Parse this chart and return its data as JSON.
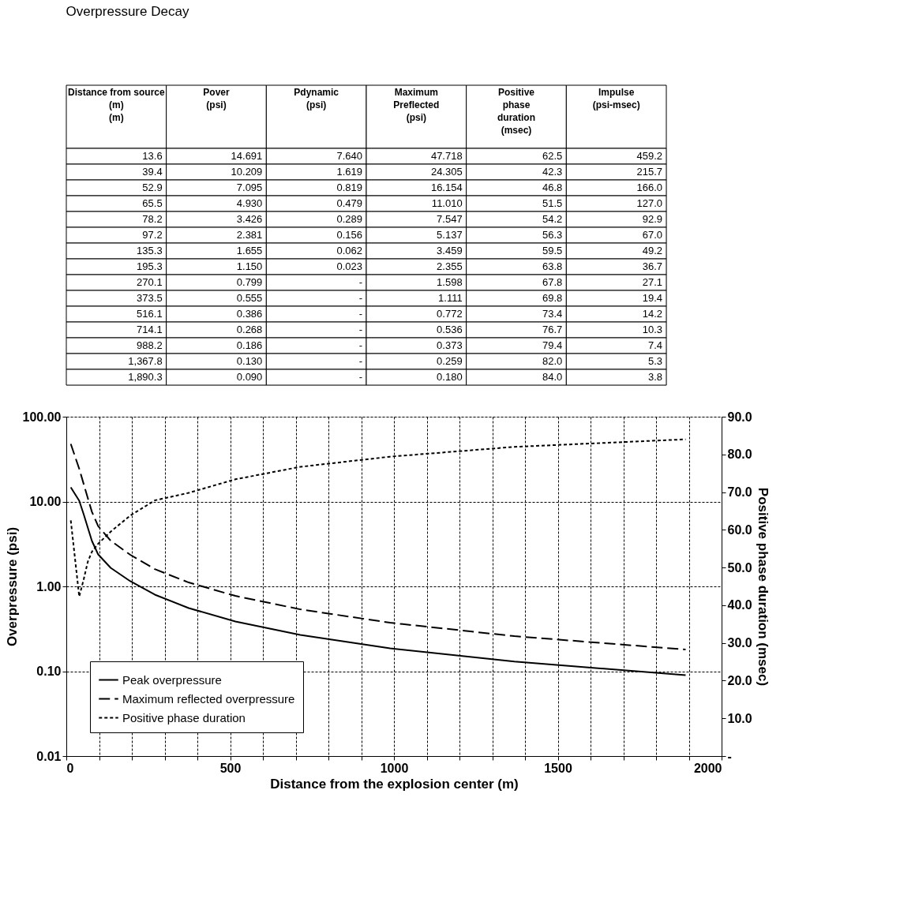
{
  "chart_data": [
    {
      "type": "other",
      "title": "Overpressure Decay",
      "categories": [
        "Distance from source\n(m)\n(m)",
        "Pover\n(psi)",
        "Pdynamic\n(psi)",
        "Maximum\nPreflected\n(psi)",
        "Positive\nphase\nduration\n(msec)",
        "Impulse\n(psi-msec)"
      ],
      "cell_labels": [
        [
          "13.6",
          "14.691",
          "7.640",
          "47.718",
          "62.5",
          "459.2"
        ],
        [
          "39.4",
          "10.209",
          "1.619",
          "24.305",
          "42.3",
          "215.7"
        ],
        [
          "52.9",
          "7.095",
          "0.819",
          "16.154",
          "46.8",
          "166.0"
        ],
        [
          "65.5",
          "4.930",
          "0.479",
          "11.010",
          "51.5",
          "127.0"
        ],
        [
          "78.2",
          "3.426",
          "0.289",
          "7.547",
          "54.2",
          "92.9"
        ],
        [
          "97.2",
          "2.381",
          "0.156",
          "5.137",
          "56.3",
          "67.0"
        ],
        [
          "135.3",
          "1.655",
          "0.062",
          "3.459",
          "59.5",
          "49.2"
        ],
        [
          "195.3",
          "1.150",
          "0.023",
          "2.355",
          "63.8",
          "36.7"
        ],
        [
          "270.1",
          "0.799",
          "-",
          "1.598",
          "67.8",
          "27.1"
        ],
        [
          "373.5",
          "0.555",
          "-",
          "1.111",
          "69.8",
          "19.4"
        ],
        [
          "516.1",
          "0.386",
          "-",
          "0.772",
          "73.4",
          "14.2"
        ],
        [
          "714.1",
          "0.268",
          "-",
          "0.536",
          "76.7",
          "10.3"
        ],
        [
          "988.2",
          "0.186",
          "-",
          "0.373",
          "79.4",
          "7.4"
        ],
        [
          "1,367.8",
          "0.130",
          "-",
          "0.259",
          "82.0",
          "5.3"
        ],
        [
          "1,890.3",
          "0.090",
          "-",
          "0.180",
          "84.0",
          "3.8"
        ]
      ]
    },
    {
      "type": "line",
      "xlabel": "Distance from the explosion center (m)",
      "ylabel": "Overpressure (psi)",
      "y2label": "Positive phase duration (msec)",
      "x": [
        13.6,
        39.4,
        52.9,
        65.5,
        78.2,
        97.2,
        135.3,
        195.3,
        270.1,
        373.5,
        516.1,
        714.1,
        988.2,
        1367.8,
        1890.3
      ],
      "xlim": [
        0,
        2000
      ],
      "xticks": [
        0,
        {
          "value": 100,
          "label": null
        },
        {
          "value": 200,
          "label": null
        },
        {
          "value": 300,
          "label": null
        },
        {
          "value": 400,
          "label": null
        },
        500,
        {
          "value": 600,
          "label": null
        },
        {
          "value": 700,
          "label": null
        },
        {
          "value": 800,
          "label": null
        },
        {
          "value": 900,
          "label": null
        },
        1000,
        {
          "value": 1100,
          "label": null
        },
        {
          "value": 1200,
          "label": null
        },
        {
          "value": 1300,
          "label": null
        },
        {
          "value": 1400,
          "label": null
        },
        1500,
        {
          "value": 1600,
          "label": null
        },
        {
          "value": 1700,
          "label": null
        },
        {
          "value": 1800,
          "label": null
        },
        {
          "value": 1900,
          "label": null
        },
        2000
      ],
      "ylim": [
        0.01,
        100
      ],
      "yticks": [
        0.01,
        {
          "value": 0.1,
          "label": "0.10"
        },
        {
          "value": 1,
          "label": "1.00"
        },
        {
          "value": 10,
          "label": "10.00"
        },
        {
          "value": 100,
          "label": "100.00"
        }
      ],
      "y2lim": [
        0,
        90
      ],
      "y2ticks": [
        {
          "value": 0,
          "label": "-"
        },
        {
          "value": 10,
          "label": "10.0"
        },
        {
          "value": 20,
          "label": "20.0"
        },
        {
          "value": 30,
          "label": "30.0"
        },
        {
          "value": 40,
          "label": "40.0"
        },
        {
          "value": 50,
          "label": "50.0"
        },
        {
          "value": 60,
          "label": "60.0"
        },
        {
          "value": 70,
          "label": "70.0"
        },
        {
          "value": 80,
          "label": "80.0"
        },
        {
          "value": 90,
          "label": "90.0"
        }
      ],
      "log": "y",
      "grid": true,
      "legend": "bottom left",
      "series": [
        {
          "name": "Peak overpressure",
          "color": "#000000",
          "line_style": "solid",
          "values": [
            14.691,
            10.209,
            7.095,
            4.93,
            3.426,
            2.381,
            1.655,
            1.15,
            0.799,
            0.555,
            0.386,
            0.268,
            0.186,
            0.13,
            0.09
          ]
        },
        {
          "name": "Maximum reflected overpressure",
          "color": "#000000",
          "line_style": "dashed",
          "values": [
            47.718,
            24.305,
            16.154,
            11.01,
            7.547,
            5.137,
            3.459,
            2.355,
            1.598,
            1.111,
            0.772,
            0.536,
            0.373,
            0.259,
            0.18
          ]
        },
        {
          "name": "Positive phase duration",
          "color": "#000000",
          "line_style": "dotted",
          "axis": "y2",
          "values": [
            62.5,
            42.3,
            46.8,
            51.5,
            54.2,
            56.3,
            59.5,
            63.8,
            67.8,
            69.8,
            73.4,
            76.7,
            79.4,
            82.0,
            84.0
          ]
        }
      ]
    }
  ]
}
